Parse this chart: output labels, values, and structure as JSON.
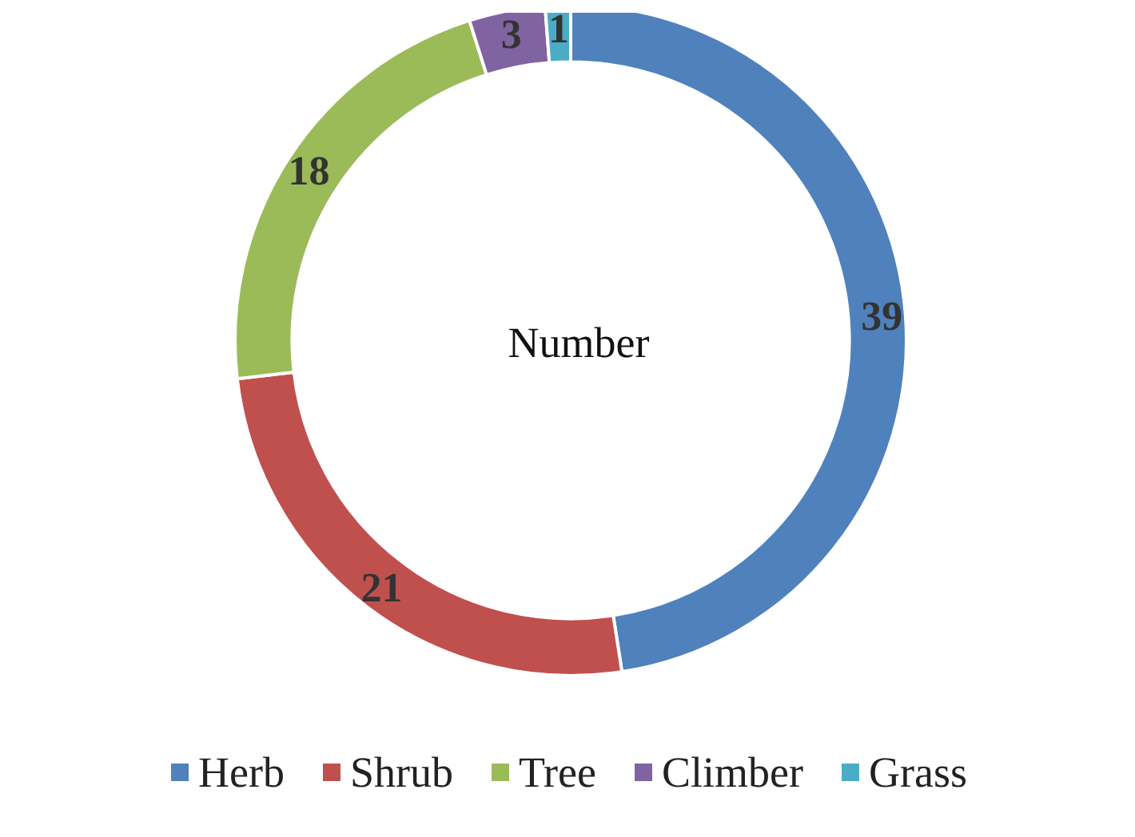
{
  "chart_data": {
    "type": "donut",
    "title": "Number",
    "categories": [
      "Herb",
      "Shrub",
      "Tree",
      "Climber",
      "Grass"
    ],
    "values": [
      39,
      21,
      18,
      3,
      1
    ],
    "colors": [
      "#4f81bd",
      "#c0504d",
      "#9bbb59",
      "#8064a2",
      "#4bacc6"
    ],
    "data_labels": true,
    "legend": "bottom"
  }
}
